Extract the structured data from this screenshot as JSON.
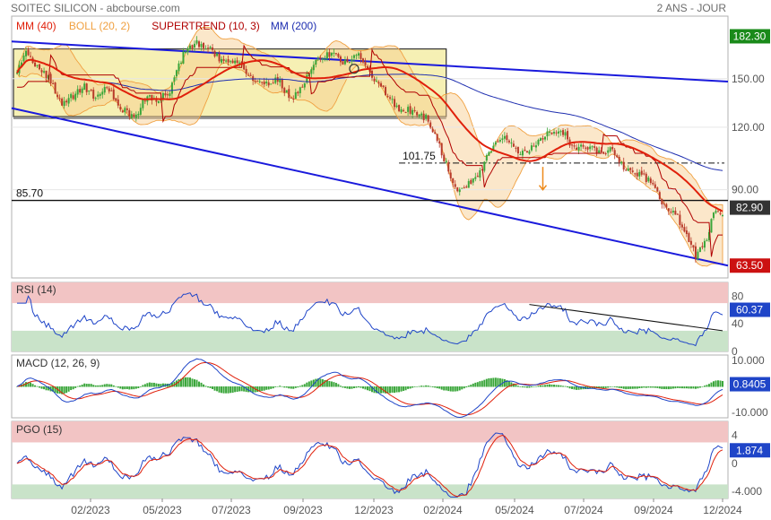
{
  "header": {
    "title": "SOITEC SILICON - abcbourse.com",
    "period": "2 ANS - JOUR"
  },
  "legend": {
    "items": [
      {
        "label": "MM (40)",
        "color": "#e0200b"
      },
      {
        "label": "BOLL (20, 2)",
        "color": "#f0a040"
      },
      {
        "label": "SUPERTREND (10, 3)",
        "color": "#b00000"
      },
      {
        "label": "MM (200)",
        "color": "#1f2fb0"
      }
    ]
  },
  "x_axis": {
    "ticks": [
      "02/2023",
      "05/2023",
      "07/2023",
      "09/2023",
      "12/2023",
      "02/2024",
      "05/2024",
      "07/2024",
      "09/2024",
      "12/2024"
    ]
  },
  "chart_data": [
    {
      "type": "line",
      "title": "",
      "panel": "price",
      "y_scale": "log",
      "ylim": [
        60,
        200
      ],
      "y_ticks": [
        "150.00",
        "120.00",
        "90.00"
      ],
      "value_labels": [
        {
          "value": "182.30",
          "color": "#1a8a1a"
        },
        {
          "value": "82.90",
          "color": "#333333"
        },
        {
          "value": "63.50",
          "color": "#cc1111"
        }
      ],
      "annotations": [
        {
          "text": "101.75",
          "value": 101.75
        },
        {
          "text": "85.70",
          "value": 85.7
        }
      ],
      "colors": {
        "up": "#3aa63a",
        "down": "#b83a2a",
        "mm40": "#e0200b",
        "boll": "#f0a040",
        "supertrend": "#b00000",
        "mm200": "#1f2fb0",
        "channel": "#1a1adc",
        "range_fill": "#f6f0b4"
      },
      "anchors": [
        [
          0,
          154
        ],
        [
          4,
          171
        ],
        [
          8,
          160
        ],
        [
          14,
          150
        ],
        [
          20,
          133
        ],
        [
          26,
          140
        ],
        [
          30,
          145
        ],
        [
          35,
          137
        ],
        [
          40,
          145
        ],
        [
          46,
          132
        ],
        [
          52,
          124
        ],
        [
          58,
          140
        ],
        [
          62,
          134
        ],
        [
          68,
          142
        ],
        [
          74,
          168
        ],
        [
          80,
          177
        ],
        [
          86,
          172
        ],
        [
          92,
          160
        ],
        [
          98,
          163
        ],
        [
          104,
          151
        ],
        [
          110,
          145
        ],
        [
          116,
          150
        ],
        [
          122,
          136
        ],
        [
          128,
          148
        ],
        [
          134,
          165
        ],
        [
          140,
          168
        ],
        [
          146,
          162
        ],
        [
          152,
          166
        ],
        [
          158,
          152
        ],
        [
          164,
          140
        ],
        [
          170,
          129
        ],
        [
          176,
          130
        ],
        [
          182,
          125
        ],
        [
          188,
          110
        ],
        [
          192,
          98
        ],
        [
          196,
          89
        ],
        [
          200,
          91
        ],
        [
          206,
          98
        ],
        [
          212,
          110
        ],
        [
          218,
          114
        ],
        [
          224,
          107
        ],
        [
          230,
          110
        ],
        [
          236,
          116
        ],
        [
          242,
          119
        ],
        [
          248,
          108
        ],
        [
          254,
          110
        ],
        [
          260,
          106
        ],
        [
          264,
          108
        ],
        [
          270,
          100
        ],
        [
          276,
          97
        ],
        [
          282,
          93
        ],
        [
          288,
          84
        ],
        [
          294,
          79
        ],
        [
          298,
          74
        ],
        [
          302,
          66
        ],
        [
          306,
          70
        ],
        [
          310,
          80
        ],
        [
          314,
          81
        ]
      ],
      "series": [
        {
          "name": "MM (40)",
          "values_derived": "moving_average_40"
        },
        {
          "name": "MM (200)",
          "values_derived": "moving_average_200"
        },
        {
          "name": "BOLL (20, 2)",
          "values_derived": "bollinger_20_2"
        },
        {
          "name": "SUPERTREND (10, 3)",
          "values_derived": "supertrend_10_3"
        }
      ]
    },
    {
      "type": "line",
      "title": "",
      "panel": "rsi",
      "label": "RSI (14)",
      "ylim": [
        0,
        100
      ],
      "y_ticks": [
        "80",
        "40",
        "0"
      ],
      "zones": {
        "upper": 70,
        "lower": 30
      },
      "value_label": "60.37",
      "color": "#1f45c8"
    },
    {
      "type": "line",
      "title": "",
      "panel": "macd",
      "label": "MACD (12, 26, 9)",
      "ylim": [
        -12,
        12
      ],
      "y_ticks": [
        "10.000",
        "0",
        "-10.000"
      ],
      "value_label": "0.8405",
      "colors": {
        "macd": "#1f45c8",
        "signal": "#e0200b",
        "histogram": "#3aa63a"
      }
    },
    {
      "type": "line",
      "title": "",
      "panel": "pgo",
      "label": "PGO (15)",
      "ylim": [
        -5,
        6
      ],
      "y_ticks": [
        "4",
        "0",
        "-4.000"
      ],
      "zones": {
        "upper": 3,
        "lower": -3
      },
      "value_label": "1.874",
      "colors": {
        "pgo": "#1f45c8",
        "smooth": "#e0200b"
      }
    }
  ]
}
